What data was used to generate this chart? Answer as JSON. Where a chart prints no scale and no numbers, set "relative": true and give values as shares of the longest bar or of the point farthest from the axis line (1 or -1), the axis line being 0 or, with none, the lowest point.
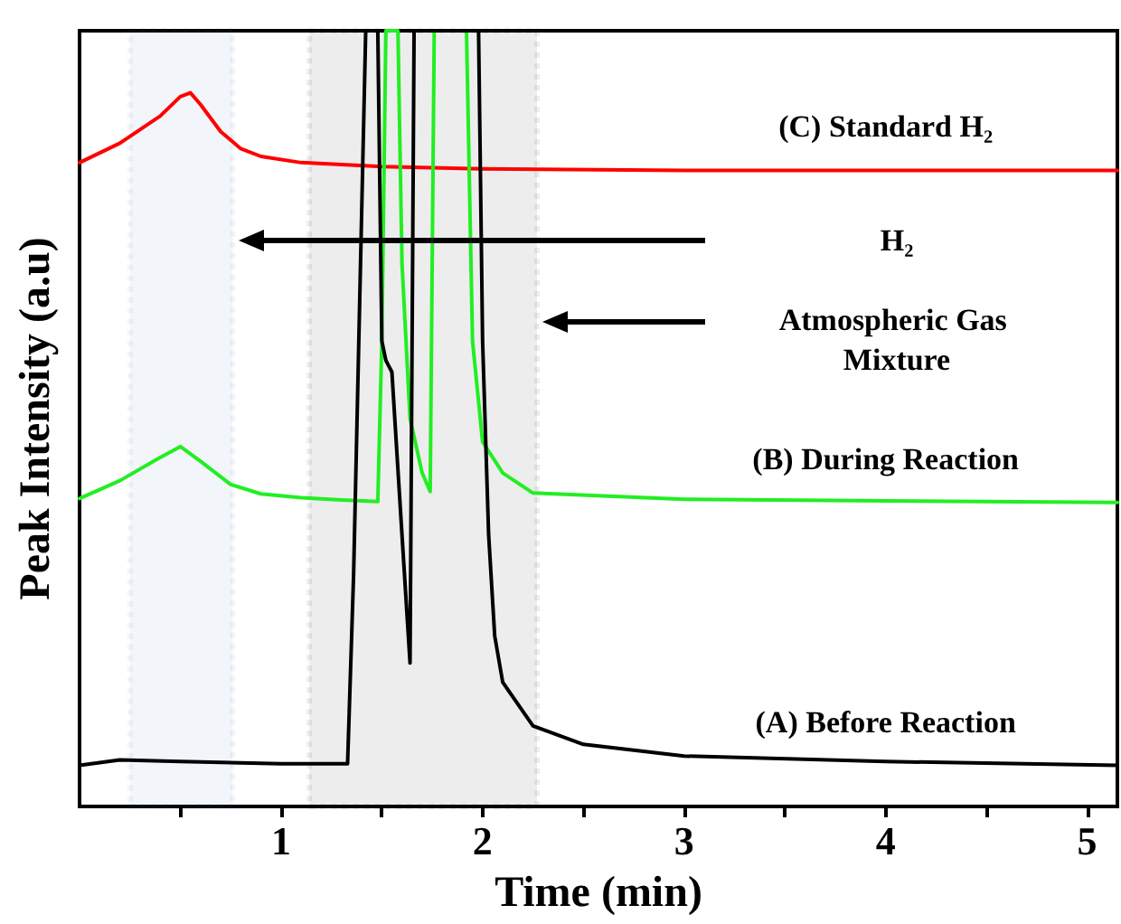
{
  "chart_data": {
    "type": "line",
    "xlabel": "Time (min)",
    "ylabel": "Peak Intensity (a.u)",
    "relative": true,
    "grid": false,
    "legend": false,
    "marker": "none",
    "line_style": "solid",
    "xlim": [
      0,
      5.15
    ],
    "xticks": [
      {
        "value": 0.5,
        "label": null
      },
      1,
      {
        "value": 1.5,
        "label": null
      },
      2,
      {
        "value": 2.5,
        "label": null
      },
      3,
      {
        "value": 3.5,
        "label": null
      },
      4,
      {
        "value": 4.5,
        "label": null
      },
      5
    ],
    "series": [
      {
        "name": "(C) Standard H₂",
        "color": "#ff0000",
        "x": [
          0,
          0.2,
          0.4,
          0.5,
          0.55,
          0.6,
          0.7,
          0.8,
          0.9,
          1.1,
          1.5,
          2,
          3,
          4,
          5.15
        ],
        "values": [
          0.83,
          0.855,
          0.89,
          0.915,
          0.92,
          0.905,
          0.87,
          0.848,
          0.838,
          0.83,
          0.825,
          0.822,
          0.82,
          0.82,
          0.82
        ]
      },
      {
        "name": "(B) During Reaction",
        "color": "#22ee22",
        "x": [
          0,
          0.2,
          0.4,
          0.5,
          0.6,
          0.75,
          0.9,
          1.1,
          1.3,
          1.48,
          1.5,
          1.52,
          1.56,
          1.58,
          1.6,
          1.64,
          1.7,
          1.74,
          1.76,
          1.92,
          1.95,
          2.0,
          2.1,
          2.25,
          3,
          4,
          5.15
        ],
        "values": [
          0.397,
          0.42,
          0.45,
          0.464,
          0.445,
          0.415,
          0.403,
          0.398,
          0.395,
          0.393,
          0.6,
          1,
          1,
          1,
          0.7,
          0.5,
          0.43,
          0.406,
          1,
          1,
          0.6,
          0.47,
          0.43,
          0.404,
          0.396,
          0.394,
          0.392
        ]
      },
      {
        "name": "(A) Before Reaction",
        "color": "#000000",
        "x": [
          0,
          0.2,
          0.5,
          1,
          1.33,
          1.36,
          1.42,
          1.48,
          1.5,
          1.52,
          1.55,
          1.6,
          1.64,
          1.66,
          1.98,
          2.0,
          2.03,
          2.06,
          2.1,
          2.25,
          2.5,
          3,
          4,
          5.15
        ],
        "values": [
          0.053,
          0.06,
          0.058,
          0.055,
          0.055,
          0.3,
          1,
          1,
          0.6,
          0.575,
          0.56,
          0.35,
          0.185,
          1,
          1,
          0.6,
          0.35,
          0.22,
          0.16,
          0.104,
          0.08,
          0.065,
          0.058,
          0.053
        ]
      }
    ],
    "bands": [
      {
        "axis": "x",
        "from": 0.25,
        "to": 0.76,
        "color": "#4a6fb5"
      },
      {
        "axis": "x",
        "from": 1.14,
        "to": 2.27,
        "color": "#000000"
      }
    ],
    "annotations": [
      "H₂",
      "Atmospheric Gas Mixture"
    ]
  }
}
